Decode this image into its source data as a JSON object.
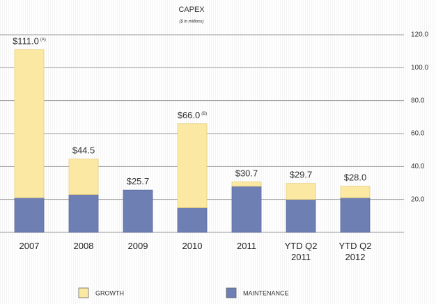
{
  "chart_data": {
    "type": "stacked_bar",
    "title": "CAPEX",
    "subtitle": "($ in millions)",
    "categories": [
      "2007",
      "2008",
      "2009",
      "2010",
      "2011",
      "YTD Q2 2011",
      "YTD Q2 2012"
    ],
    "series": [
      {
        "name": "MAINTENANCE",
        "color": "#6e7fb4",
        "values": [
          21,
          23,
          25.7,
          15,
          28,
          20,
          21
        ]
      },
      {
        "name": "GROWTH",
        "color": "#fbe8a2",
        "values": [
          90,
          21.5,
          0,
          51,
          2.7,
          9.7,
          7
        ]
      }
    ],
    "totals": [
      111.0,
      44.5,
      25.7,
      66.0,
      30.7,
      29.7,
      28.0
    ],
    "total_labels": [
      "$111.0",
      "$44.5",
      "$25.7",
      "$66.0",
      "$30.7",
      "$29.7",
      "$28.0"
    ],
    "total_notes": [
      "(A)",
      null,
      null,
      "(B)",
      null,
      null,
      null
    ],
    "ylim": [
      0,
      120
    ],
    "yticks": [
      {
        "value": 20,
        "label": "20.0"
      },
      {
        "value": 40,
        "label": "40.0"
      },
      {
        "value": 60,
        "label": "60.0"
      },
      {
        "value": 80,
        "label": "80.0"
      },
      {
        "value": 100,
        "label": "100.0"
      },
      {
        "value": 120,
        "label": "120.0"
      }
    ],
    "grid": true,
    "legend": "bottom"
  }
}
